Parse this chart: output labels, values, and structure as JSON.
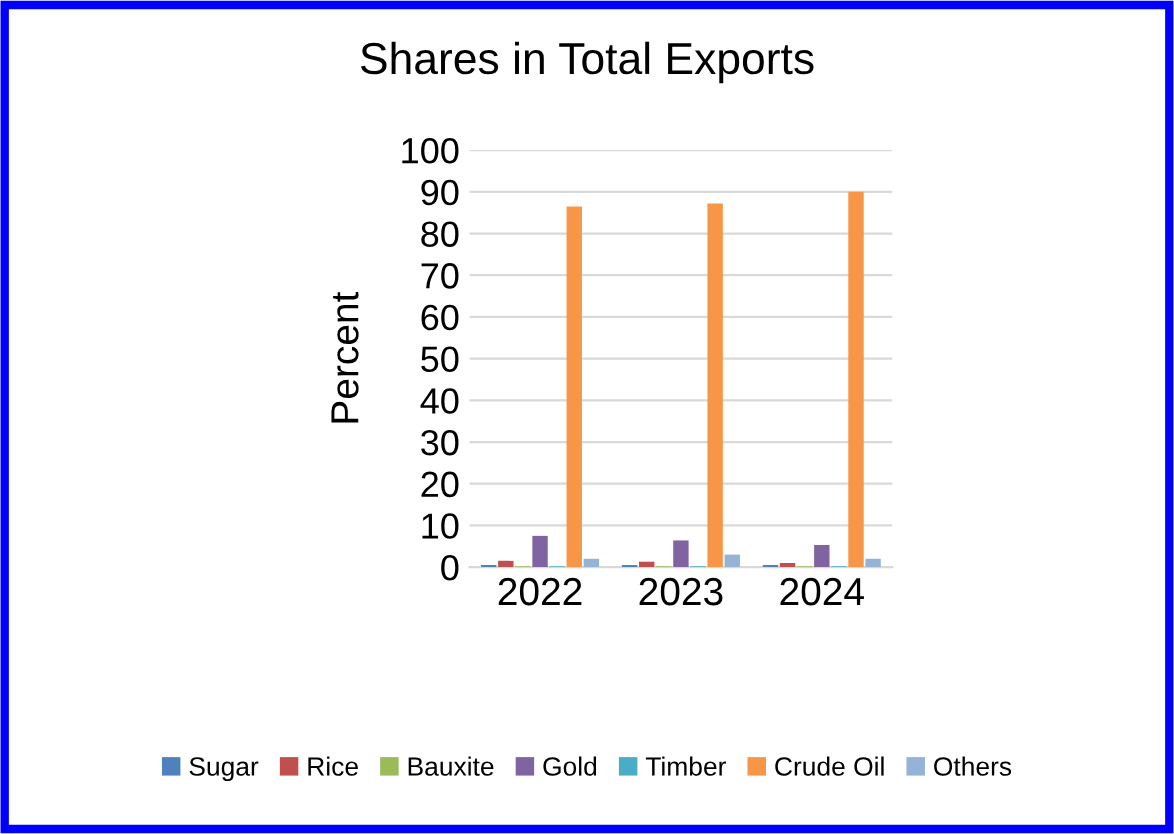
{
  "chart_data": {
    "type": "bar",
    "title": "Shares in Total Exports",
    "ylabel": "Percent",
    "categories": [
      "2022",
      "2023",
      "2024"
    ],
    "series": [
      {
        "name": "Sugar",
        "color": "#4f81bd",
        "values": [
          0.5,
          0.5,
          0.5
        ]
      },
      {
        "name": "Rice",
        "color": "#c0504d",
        "values": [
          1.5,
          1.3,
          1
        ]
      },
      {
        "name": "Bauxite",
        "color": "#9bbb59",
        "values": [
          0.2,
          0.2,
          0.2
        ]
      },
      {
        "name": "Gold",
        "color": "#8064a2",
        "values": [
          7.5,
          6.4,
          5.3
        ]
      },
      {
        "name": "Timber",
        "color": "#4bacc6",
        "values": [
          0.2,
          0.2,
          0.2
        ]
      },
      {
        "name": "Crude Oil",
        "color": "#f79646",
        "values": [
          86.5,
          87.2,
          90
        ]
      },
      {
        "name": "Others",
        "color": "#95b3d7",
        "values": [
          2,
          3,
          2
        ]
      }
    ],
    "ylim": [
      0,
      100
    ],
    "yticks": [
      0,
      10,
      20,
      30,
      40,
      50,
      60,
      70,
      80,
      90,
      100
    ],
    "grid": "y",
    "legend": "bottom"
  }
}
